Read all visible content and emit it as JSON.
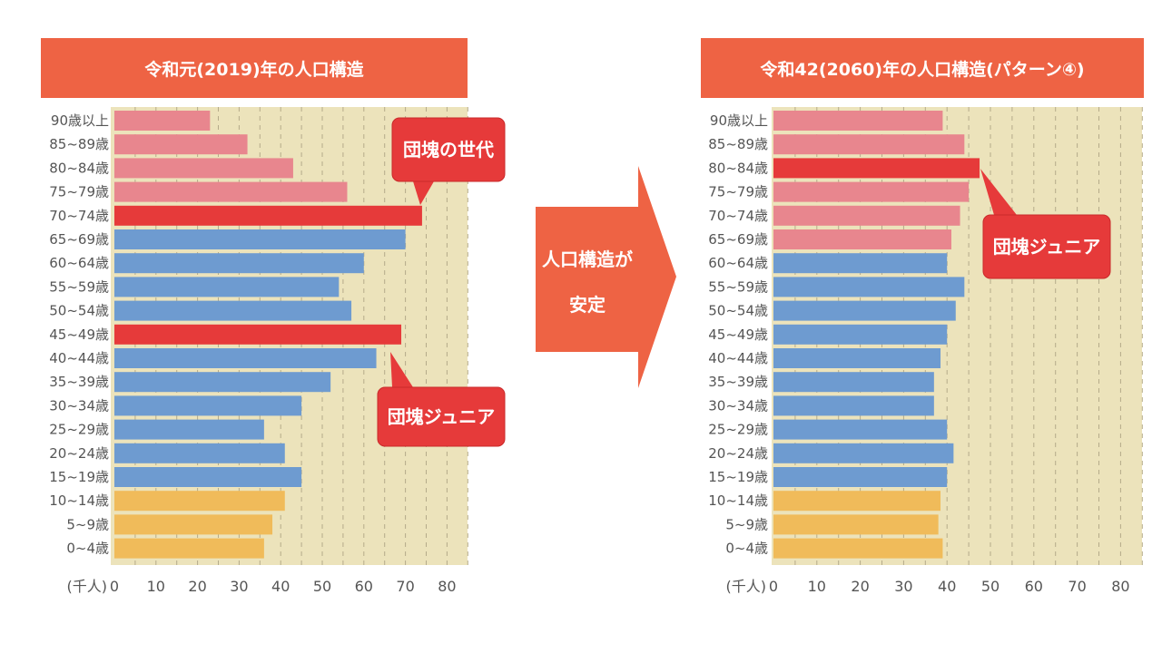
{
  "colors": {
    "header": "#ee6344",
    "elderly": "#e8868e",
    "highlight": "#e63a3a",
    "working": "#6e9bd0",
    "young": "#f0bb5a",
    "plot_bg": "#ece3bb",
    "callout": "#e63a3a"
  },
  "arrow": {
    "line1": "人口構造が",
    "line2": "安定"
  },
  "chart_data": [
    {
      "type": "bar",
      "orientation": "horizontal",
      "title": "令和元(2019)年の人口構造",
      "unit_label": "(千人)",
      "xlim": [
        0,
        85
      ],
      "xticks": [
        "0",
        "10",
        "20",
        "30",
        "40",
        "50",
        "60",
        "70",
        "80"
      ],
      "grid": "vertical dashed every 5",
      "categories": [
        "90歳以上",
        "85~89歳",
        "80~84歳",
        "75~79歳",
        "70~74歳",
        "65~69歳",
        "60~64歳",
        "55~59歳",
        "50~54歳",
        "45~49歳",
        "40~44歳",
        "35~39歳",
        "30~34歳",
        "25~29歳",
        "20~24歳",
        "15~19歳",
        "10~14歳",
        "5~9歳",
        "0~4歳"
      ],
      "values": [
        23,
        32,
        43,
        56,
        74,
        70,
        60,
        54,
        57,
        69,
        63,
        52,
        45,
        36,
        41,
        45,
        41,
        38,
        36
      ],
      "groups": [
        "elderly",
        "elderly",
        "elderly",
        "elderly",
        "highlight",
        "working",
        "working",
        "working",
        "working",
        "highlight",
        "working",
        "working",
        "working",
        "working",
        "working",
        "working",
        "young",
        "young",
        "young"
      ],
      "annotations": [
        {
          "text": "団塊の世代",
          "category": "70~74歳"
        },
        {
          "text": "団塊ジュニア",
          "category": "45~49歳"
        }
      ]
    },
    {
      "type": "bar",
      "orientation": "horizontal",
      "title": "令和42(2060)年の人口構造(パターン④)",
      "unit_label": "(千人)",
      "xlim": [
        0,
        85
      ],
      "xticks": [
        "0",
        "10",
        "20",
        "30",
        "40",
        "50",
        "60",
        "70",
        "80"
      ],
      "grid": "vertical dashed every 5",
      "categories": [
        "90歳以上",
        "85~89歳",
        "80~84歳",
        "75~79歳",
        "70~74歳",
        "65~69歳",
        "60~64歳",
        "55~59歳",
        "50~54歳",
        "45~49歳",
        "40~44歳",
        "35~39歳",
        "30~34歳",
        "25~29歳",
        "20~24歳",
        "15~19歳",
        "10~14歳",
        "5~9歳",
        "0~4歳"
      ],
      "values": [
        39,
        44,
        47.5,
        45,
        43,
        41,
        40,
        44,
        42,
        40,
        38.5,
        37,
        37,
        40,
        41.5,
        40,
        38.5,
        38,
        39
      ],
      "groups": [
        "elderly",
        "elderly",
        "highlight",
        "elderly",
        "elderly",
        "elderly",
        "working",
        "working",
        "working",
        "working",
        "working",
        "working",
        "working",
        "working",
        "working",
        "working",
        "young",
        "young",
        "young"
      ],
      "annotations": [
        {
          "text": "団塊ジュニア",
          "category": "80~84歳"
        }
      ]
    }
  ]
}
